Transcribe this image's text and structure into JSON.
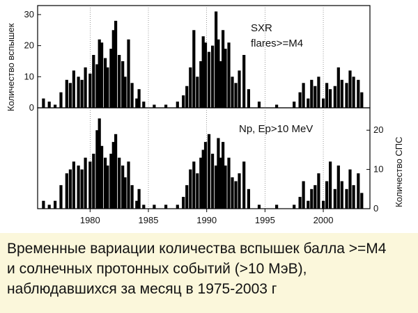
{
  "chart_data": [
    {
      "type": "bar",
      "panel": "top",
      "annotation_lines": [
        "SXR",
        "flares>=M4"
      ],
      "ylabel": "Количество вспышек",
      "ylim": [
        0,
        32
      ],
      "yticks": [
        0,
        10,
        20,
        30
      ],
      "xlim": [
        1975.5,
        2004.0
      ],
      "xticks": [],
      "x": [
        1976.0,
        1976.5,
        1977.0,
        1977.5,
        1978.0,
        1978.3,
        1978.6,
        1979.0,
        1979.3,
        1979.6,
        1980.0,
        1980.3,
        1980.6,
        1980.8,
        1981.0,
        1981.3,
        1981.5,
        1981.8,
        1982.0,
        1982.2,
        1982.5,
        1982.8,
        1983.0,
        1983.3,
        1983.6,
        1984.0,
        1984.2,
        1984.6,
        1985.5,
        1986.5,
        1987.5,
        1988.0,
        1988.3,
        1988.6,
        1988.9,
        1989.2,
        1989.5,
        1989.7,
        1989.9,
        1990.2,
        1990.5,
        1990.8,
        1991.0,
        1991.2,
        1991.4,
        1991.6,
        1991.9,
        1992.2,
        1992.5,
        1992.8,
        1993.2,
        1993.6,
        1994.5,
        1996.0,
        1997.5,
        1998.0,
        1998.3,
        1998.7,
        1999.0,
        1999.3,
        1999.6,
        2000.0,
        2000.3,
        2000.6,
        2001.0,
        2001.3,
        2001.6,
        2002.0,
        2002.3,
        2002.6,
        2003.0,
        2003.3
      ],
      "values": [
        3,
        2,
        1,
        5,
        9,
        8,
        12,
        10,
        9,
        13,
        11,
        17,
        14,
        22,
        21,
        16,
        13,
        19,
        25,
        28,
        17,
        15,
        10,
        22,
        8,
        3,
        6,
        2,
        1,
        1,
        2,
        4,
        7,
        13,
        25,
        10,
        15,
        23,
        21,
        18,
        20,
        31,
        22,
        15,
        25,
        19,
        21,
        10,
        8,
        12,
        17,
        6,
        2,
        1,
        2,
        5,
        8,
        3,
        9,
        7,
        10,
        3,
        8,
        6,
        7,
        13,
        9,
        8,
        12,
        10,
        9,
        5
      ]
    },
    {
      "type": "bar",
      "panel": "bottom",
      "annotation": "Np, Ep>10 MeV",
      "ylabel": "Количество СПС",
      "ylim": [
        0,
        25
      ],
      "yticks": [
        0,
        10,
        20
      ],
      "xlim": [
        1975.5,
        2004.0
      ],
      "xticks": [
        1980,
        1985,
        1990,
        1995,
        2000
      ],
      "x": [
        1976.0,
        1976.5,
        1977.0,
        1977.5,
        1978.0,
        1978.3,
        1978.6,
        1979.0,
        1979.3,
        1979.6,
        1980.0,
        1980.3,
        1980.6,
        1980.8,
        1981.0,
        1981.3,
        1981.5,
        1981.8,
        1982.0,
        1982.2,
        1982.5,
        1982.8,
        1983.0,
        1983.3,
        1983.6,
        1984.0,
        1984.2,
        1984.6,
        1985.5,
        1986.5,
        1987.5,
        1988.0,
        1988.3,
        1988.6,
        1988.9,
        1989.2,
        1989.5,
        1989.7,
        1989.9,
        1990.2,
        1990.5,
        1990.8,
        1991.0,
        1991.2,
        1991.4,
        1991.6,
        1991.9,
        1992.2,
        1992.5,
        1992.8,
        1993.2,
        1993.6,
        1994.5,
        1996.0,
        1997.5,
        1998.0,
        1998.3,
        1998.7,
        1999.0,
        1999.3,
        1999.6,
        2000.0,
        2000.3,
        2000.6,
        2001.0,
        2001.3,
        2001.6,
        2002.0,
        2002.3,
        2002.6,
        2003.0,
        2003.3
      ],
      "values": [
        2,
        1,
        2,
        6,
        9,
        10,
        12,
        11,
        10,
        13,
        12,
        14,
        20,
        23,
        16,
        13,
        11,
        14,
        17,
        19,
        13,
        11,
        8,
        12,
        6,
        2,
        5,
        1,
        1,
        1,
        1,
        3,
        6,
        10,
        12,
        9,
        13,
        15,
        17,
        19,
        14,
        11,
        18,
        13,
        17,
        11,
        13,
        8,
        7,
        9,
        12,
        5,
        1,
        1,
        1,
        3,
        7,
        2,
        5,
        6,
        9,
        2,
        7,
        12,
        5,
        11,
        7,
        5,
        10,
        6,
        9,
        4
      ]
    }
  ],
  "caption": [
    "Временные вариации количества вспышек балла >=М4",
    "и солнечных протонных событий (>10 МэВ),",
    "наблюдавшихся за месяц в 1975-2003 г"
  ]
}
